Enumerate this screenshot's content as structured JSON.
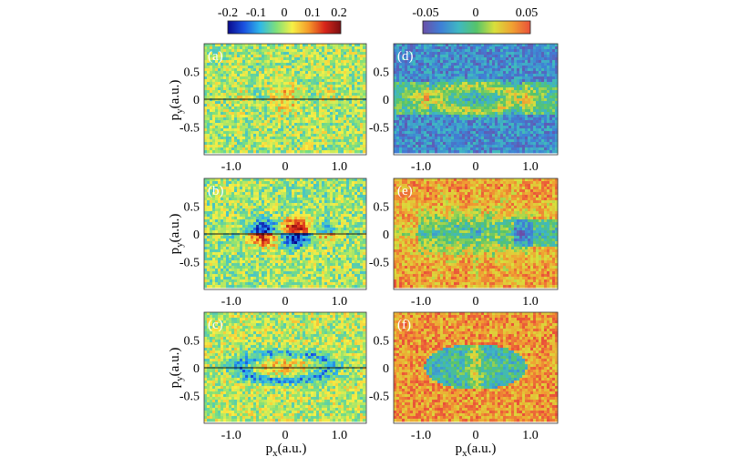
{
  "colorbars": {
    "left": {
      "ticks": [
        "-0.2",
        "-0.1",
        "0",
        "0.1",
        "0.2"
      ],
      "range": [
        -0.2,
        0.2
      ],
      "colormap": [
        "#0a0a8c",
        "#1a52e0",
        "#2fb8e8",
        "#7fe07a",
        "#f6f046",
        "#f59a2a",
        "#d8261a",
        "#7a0e12"
      ]
    },
    "right": {
      "ticks": [
        "-0.05",
        "0",
        "0.05"
      ],
      "range": [
        -0.05,
        0.05
      ],
      "colormap": [
        "#6a4fa8",
        "#3f7fd6",
        "#3fb8c2",
        "#56c46a",
        "#d9df3c",
        "#f0a032",
        "#ea4f3a"
      ]
    }
  },
  "axes": {
    "xlabel": "p",
    "xlabel_sub": "x",
    "xlabel_unit": "(a.u.)",
    "ylabel": "p",
    "ylabel_sub": "y",
    "ylabel_unit": "(a.u.)",
    "xticks": [
      "-1.0",
      "0",
      "1.0"
    ],
    "yticks": [
      "0.5",
      "0",
      "-0.5"
    ]
  },
  "chart_data": [
    {
      "type": "heatmap",
      "panel_label": "(a)",
      "colorbar": "left",
      "xlim": [
        -1.5,
        1.5
      ],
      "ylim": [
        -1.0,
        1.0
      ],
      "xlabel": "",
      "ylabel": "py (a.u.)",
      "pattern": "central",
      "base": 0.48,
      "seed": 11
    },
    {
      "type": "heatmap",
      "panel_label": "(b)",
      "colorbar": "left",
      "xlim": [
        -1.5,
        1.5
      ],
      "ylim": [
        -1.0,
        1.0
      ],
      "xlabel": "",
      "ylabel": "py (a.u.)",
      "pattern": "fringes",
      "base": 0.46,
      "seed": 23
    },
    {
      "type": "heatmap",
      "panel_label": "(c)",
      "colorbar": "left",
      "xlim": [
        -1.5,
        1.5
      ],
      "ylim": [
        -1.0,
        1.0
      ],
      "xlabel": "px (a.u.)",
      "ylabel": "py (a.u.)",
      "pattern": "ring",
      "base": 0.48,
      "seed": 37
    },
    {
      "type": "heatmap",
      "panel_label": "(d)",
      "colorbar": "right",
      "xlim": [
        -1.5,
        1.5
      ],
      "ylim": [
        -1.0,
        1.0
      ],
      "xlabel": "",
      "ylabel": "",
      "pattern": "ring_noisy",
      "base": 0.22,
      "seed": 41
    },
    {
      "type": "heatmap",
      "panel_label": "(e)",
      "colorbar": "right",
      "xlim": [
        -1.5,
        1.5
      ],
      "ylim": [
        -1.0,
        1.0
      ],
      "xlabel": "",
      "ylabel": "",
      "pattern": "rays",
      "base": 0.82,
      "seed": 53
    },
    {
      "type": "heatmap",
      "panel_label": "(f)",
      "colorbar": "right",
      "xlim": [
        -1.5,
        1.5
      ],
      "ylim": [
        -1.0,
        1.0
      ],
      "xlabel": "px (a.u.)",
      "ylabel": "",
      "pattern": "ellipse_red",
      "base": 0.86,
      "seed": 67
    }
  ]
}
